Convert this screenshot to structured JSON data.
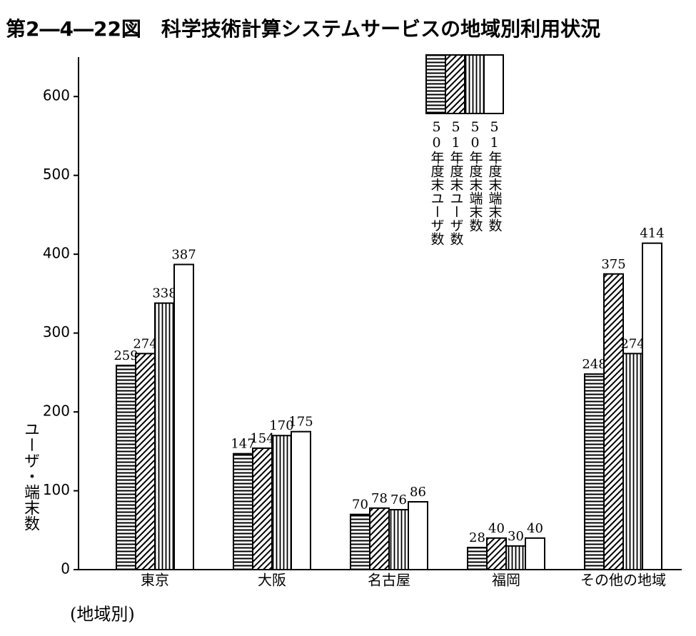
{
  "chart_data": {
    "type": "bar",
    "title": "第2―4―22図　科学技術計算システムサービスの地域別利用状況",
    "y_label": "ユーザ・端末数",
    "x_label": "(地域別)",
    "categories": [
      "東京",
      "大阪",
      "名古屋",
      "福岡",
      "その他の地域"
    ],
    "series": [
      {
        "name": "50年度末ユーザ数",
        "color": "#000000",
        "pattern": "horizontal",
        "values": [
          259,
          147,
          70,
          28,
          248
        ]
      },
      {
        "name": "51年度末ユーザ数",
        "color": "#000000",
        "pattern": "diagonal",
        "values": [
          274,
          154,
          78,
          40,
          375
        ]
      },
      {
        "name": "50年度末端末数",
        "color": "#000000",
        "pattern": "vertical",
        "values": [
          338,
          170,
          76,
          30,
          274
        ]
      },
      {
        "name": "51年度末端末数",
        "color": "#000000",
        "pattern": "none",
        "values": [
          387,
          175,
          86,
          40,
          414
        ]
      }
    ],
    "ylim": [
      0,
      650
    ],
    "yticks": [
      0,
      100,
      200,
      300,
      400,
      500,
      600
    ],
    "grid": false
  }
}
